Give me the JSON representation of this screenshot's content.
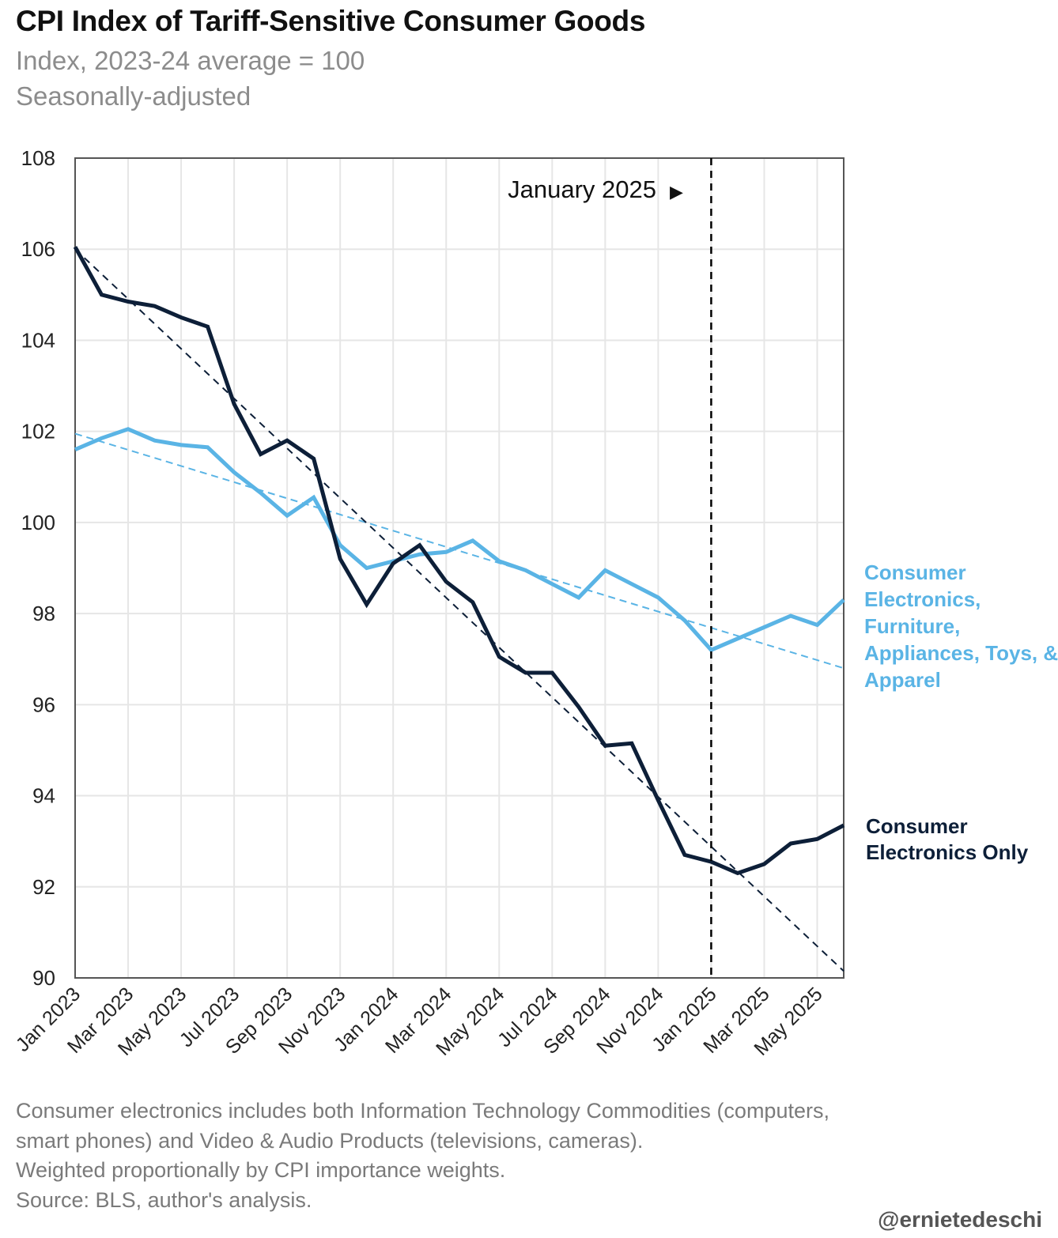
{
  "header": {
    "title": "CPI Index of Tariff-Sensitive Consumer Goods",
    "subtitle1": "Index, 2023-24 average = 100",
    "subtitle2": "Seasonally-adjusted"
  },
  "notes": [
    "Consumer electronics includes both Information Technology Commodities (computers,",
    "smart phones) and Video & Audio Products (televisions, cameras).",
    "Weighted proportionally by CPI importance weights.",
    "Source: BLS, author's analysis."
  ],
  "credit": "@ernietedeschi",
  "colors": {
    "electronics_only": "#0d1f38",
    "broad": "#5ab4e5",
    "grid": "#e6e6e6",
    "axis": "#555555"
  },
  "chart_data": {
    "type": "line",
    "title": "CPI Index of Tariff-Sensitive Consumer Goods",
    "ylabel": "Index, 2023-24 average = 100",
    "ylim": [
      90,
      108
    ],
    "yticks": [
      90,
      92,
      94,
      96,
      98,
      100,
      102,
      104,
      106,
      108
    ],
    "x": [
      "Jan 2023",
      "Feb 2023",
      "Mar 2023",
      "Apr 2023",
      "May 2023",
      "Jun 2023",
      "Jul 2023",
      "Aug 2023",
      "Sep 2023",
      "Oct 2023",
      "Nov 2023",
      "Dec 2023",
      "Jan 2024",
      "Feb 2024",
      "Mar 2024",
      "Apr 2024",
      "May 2024",
      "Jun 2024",
      "Jul 2024",
      "Aug 2024",
      "Sep 2024",
      "Oct 2024",
      "Nov 2024",
      "Dec 2024",
      "Jan 2025",
      "Feb 2025",
      "Mar 2025",
      "Apr 2025",
      "May 2025",
      "Jun 2025"
    ],
    "xtick_labels": [
      "Jan 2023",
      "Mar 2023",
      "May 2023",
      "Jul 2023",
      "Sep 2023",
      "Nov 2023",
      "Jan 2024",
      "Mar 2024",
      "May 2024",
      "Jul 2024",
      "Sep 2024",
      "Nov 2024",
      "Jan 2025",
      "Mar 2025",
      "May 2025"
    ],
    "series": [
      {
        "name": "Consumer Electronics, Furniture, Appliances, Toys, & Apparel",
        "label_lines": [
          "Consumer",
          "Electronics,",
          "Furniture,",
          "Appliances, Toys, &",
          "Apparel"
        ],
        "color": "#5ab4e5",
        "values": [
          101.6,
          101.85,
          102.05,
          101.8,
          101.7,
          101.65,
          101.1,
          100.65,
          100.15,
          100.55,
          99.5,
          99.0,
          99.15,
          99.3,
          99.35,
          99.6,
          99.15,
          98.95,
          98.65,
          98.35,
          98.95,
          98.65,
          98.35,
          97.85,
          97.2,
          97.45,
          97.7,
          97.95,
          97.75,
          98.3
        ],
        "trend": {
          "start": 101.95,
          "end": 96.8
        }
      },
      {
        "name": "Consumer Electronics Only",
        "label_lines": [
          "Consumer",
          "Electronics Only"
        ],
        "color": "#0d1f38",
        "values": [
          106.05,
          105.0,
          104.85,
          104.75,
          104.5,
          104.3,
          102.6,
          101.5,
          101.8,
          101.4,
          99.2,
          98.2,
          99.1,
          99.5,
          98.7,
          98.25,
          97.05,
          96.7,
          96.7,
          95.95,
          95.1,
          95.15,
          93.9,
          92.7,
          92.55,
          92.3,
          92.5,
          92.95,
          93.05,
          93.35
        ],
        "trend": {
          "start": 106.0,
          "end": 90.15
        }
      }
    ],
    "annotation": {
      "text": "January 2025",
      "x": "Jan 2025",
      "arrow": "▶"
    }
  }
}
